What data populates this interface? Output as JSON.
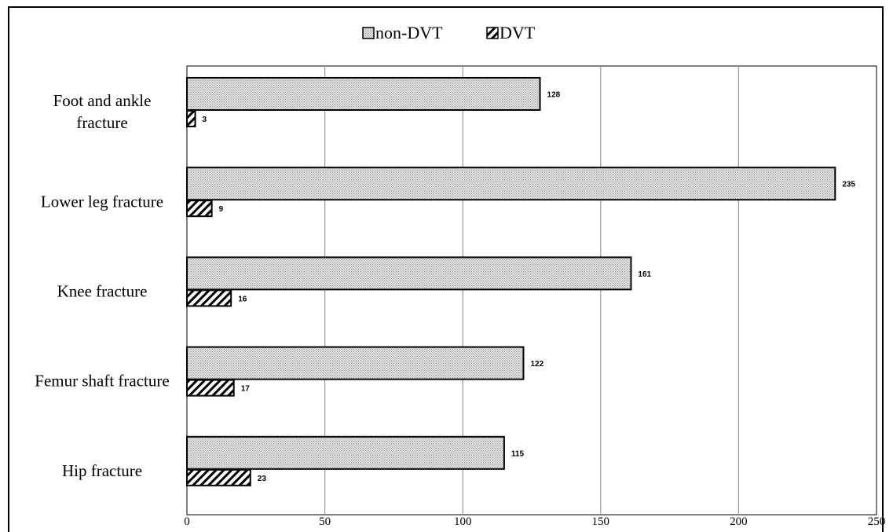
{
  "chart_data": {
    "type": "bar",
    "orientation": "horizontal",
    "categories": [
      "Foot and ankle fracture",
      "Lower leg fracture",
      "Knee fracture",
      "Femur shaft fracture",
      "Hip fracture"
    ],
    "category_lines": [
      [
        "Foot and ankle",
        "fracture"
      ],
      [
        "Lower leg fracture"
      ],
      [
        "Knee fracture"
      ],
      [
        "Femur shaft fracture"
      ],
      [
        "Hip fracture"
      ]
    ],
    "series": [
      {
        "name": "non-DVT",
        "values": [
          128,
          235,
          161,
          122,
          115
        ]
      },
      {
        "name": "DVT",
        "values": [
          3,
          9,
          16,
          17,
          23
        ]
      }
    ],
    "xlim": [
      0,
      250
    ],
    "xticks": [
      "0",
      "50",
      "100",
      "150",
      "200",
      "250"
    ],
    "xtick_values": [
      0,
      50,
      100,
      150,
      200,
      250
    ],
    "grid": "vertical",
    "legend": "top-center",
    "title": "",
    "xlabel": "",
    "ylabel": ""
  },
  "legend": {
    "items": [
      "non-DVT",
      "DVT"
    ]
  },
  "colors": {
    "stroke": "#000000",
    "non_dvt_fill": "#d6d6d6",
    "dvt_hatch": "#000000",
    "grid": "#9a9a9a"
  }
}
